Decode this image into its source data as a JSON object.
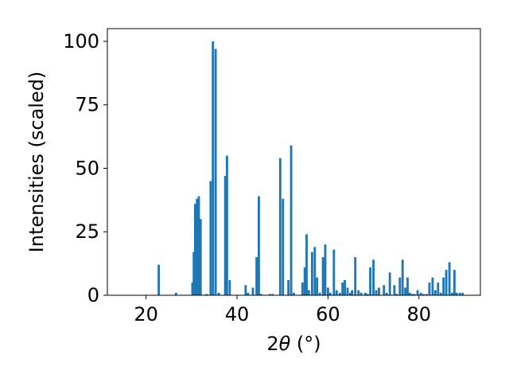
{
  "chart_data": {
    "type": "bar",
    "title": "",
    "xlabel_prefix": "2",
    "xlabel_theta": "θ",
    "xlabel_unit": " (°)",
    "ylabel": "Intensities (scaled)",
    "xlim": [
      11.5,
      93.5
    ],
    "ylim": [
      0,
      105
    ],
    "bar_width": 0.5,
    "bar_color": "#1f77b4",
    "grid": false,
    "xticks": [
      20,
      40,
      60,
      80
    ],
    "yticks": [
      0,
      25,
      50,
      75,
      100
    ],
    "x": [
      22.8,
      26.6,
      30.2,
      30.5,
      30.8,
      31.2,
      31.6,
      32.0,
      33.3,
      34.2,
      34.7,
      35.3,
      36.0,
      37.4,
      37.8,
      38.4,
      41.9,
      42.4,
      43.5,
      44.3,
      44.8,
      45.3,
      47.2,
      47.8,
      49.5,
      50.1,
      51.3,
      51.9,
      52.5,
      54.4,
      54.9,
      55.3,
      55.8,
      56.5,
      57.1,
      57.6,
      58.2,
      58.9,
      59.4,
      60.0,
      60.5,
      61.3,
      61.9,
      62.6,
      63.2,
      63.7,
      64.3,
      64.9,
      65.3,
      66.0,
      66.7,
      67.3,
      68.2,
      68.7,
      69.3,
      70.0,
      70.6,
      71.2,
      72.3,
      72.9,
      73.6,
      74.6,
      75.1,
      75.8,
      76.4,
      77.0,
      77.5,
      78.0,
      78.5,
      79.0,
      79.7,
      80.4,
      81.0,
      81.7,
      82.3,
      83.0,
      83.6,
      84.2,
      84.8,
      85.4,
      86.0,
      86.7,
      87.3,
      87.8,
      88.3,
      89.0,
      89.6
    ],
    "values": [
      12,
      1,
      5,
      17,
      36,
      38,
      39,
      30,
      0.5,
      45,
      100,
      97,
      1,
      47,
      55,
      6,
      4,
      1,
      3,
      15,
      39,
      0.5,
      0.5,
      0.5,
      54,
      38,
      6,
      59,
      1,
      5,
      11,
      24,
      2,
      17,
      19,
      7,
      1,
      15,
      20,
      3,
      1,
      18,
      2,
      1,
      5,
      6,
      3,
      1,
      2,
      15,
      2,
      1,
      1,
      0.5,
      11,
      14,
      2,
      3,
      4,
      1,
      9,
      4,
      0.5,
      7,
      14,
      3,
      7,
      1,
      0.5,
      0.5,
      2,
      1,
      0.5,
      0.5,
      5,
      7,
      2,
      5,
      1,
      7,
      10,
      13,
      1,
      10,
      1,
      1,
      1
    ]
  }
}
